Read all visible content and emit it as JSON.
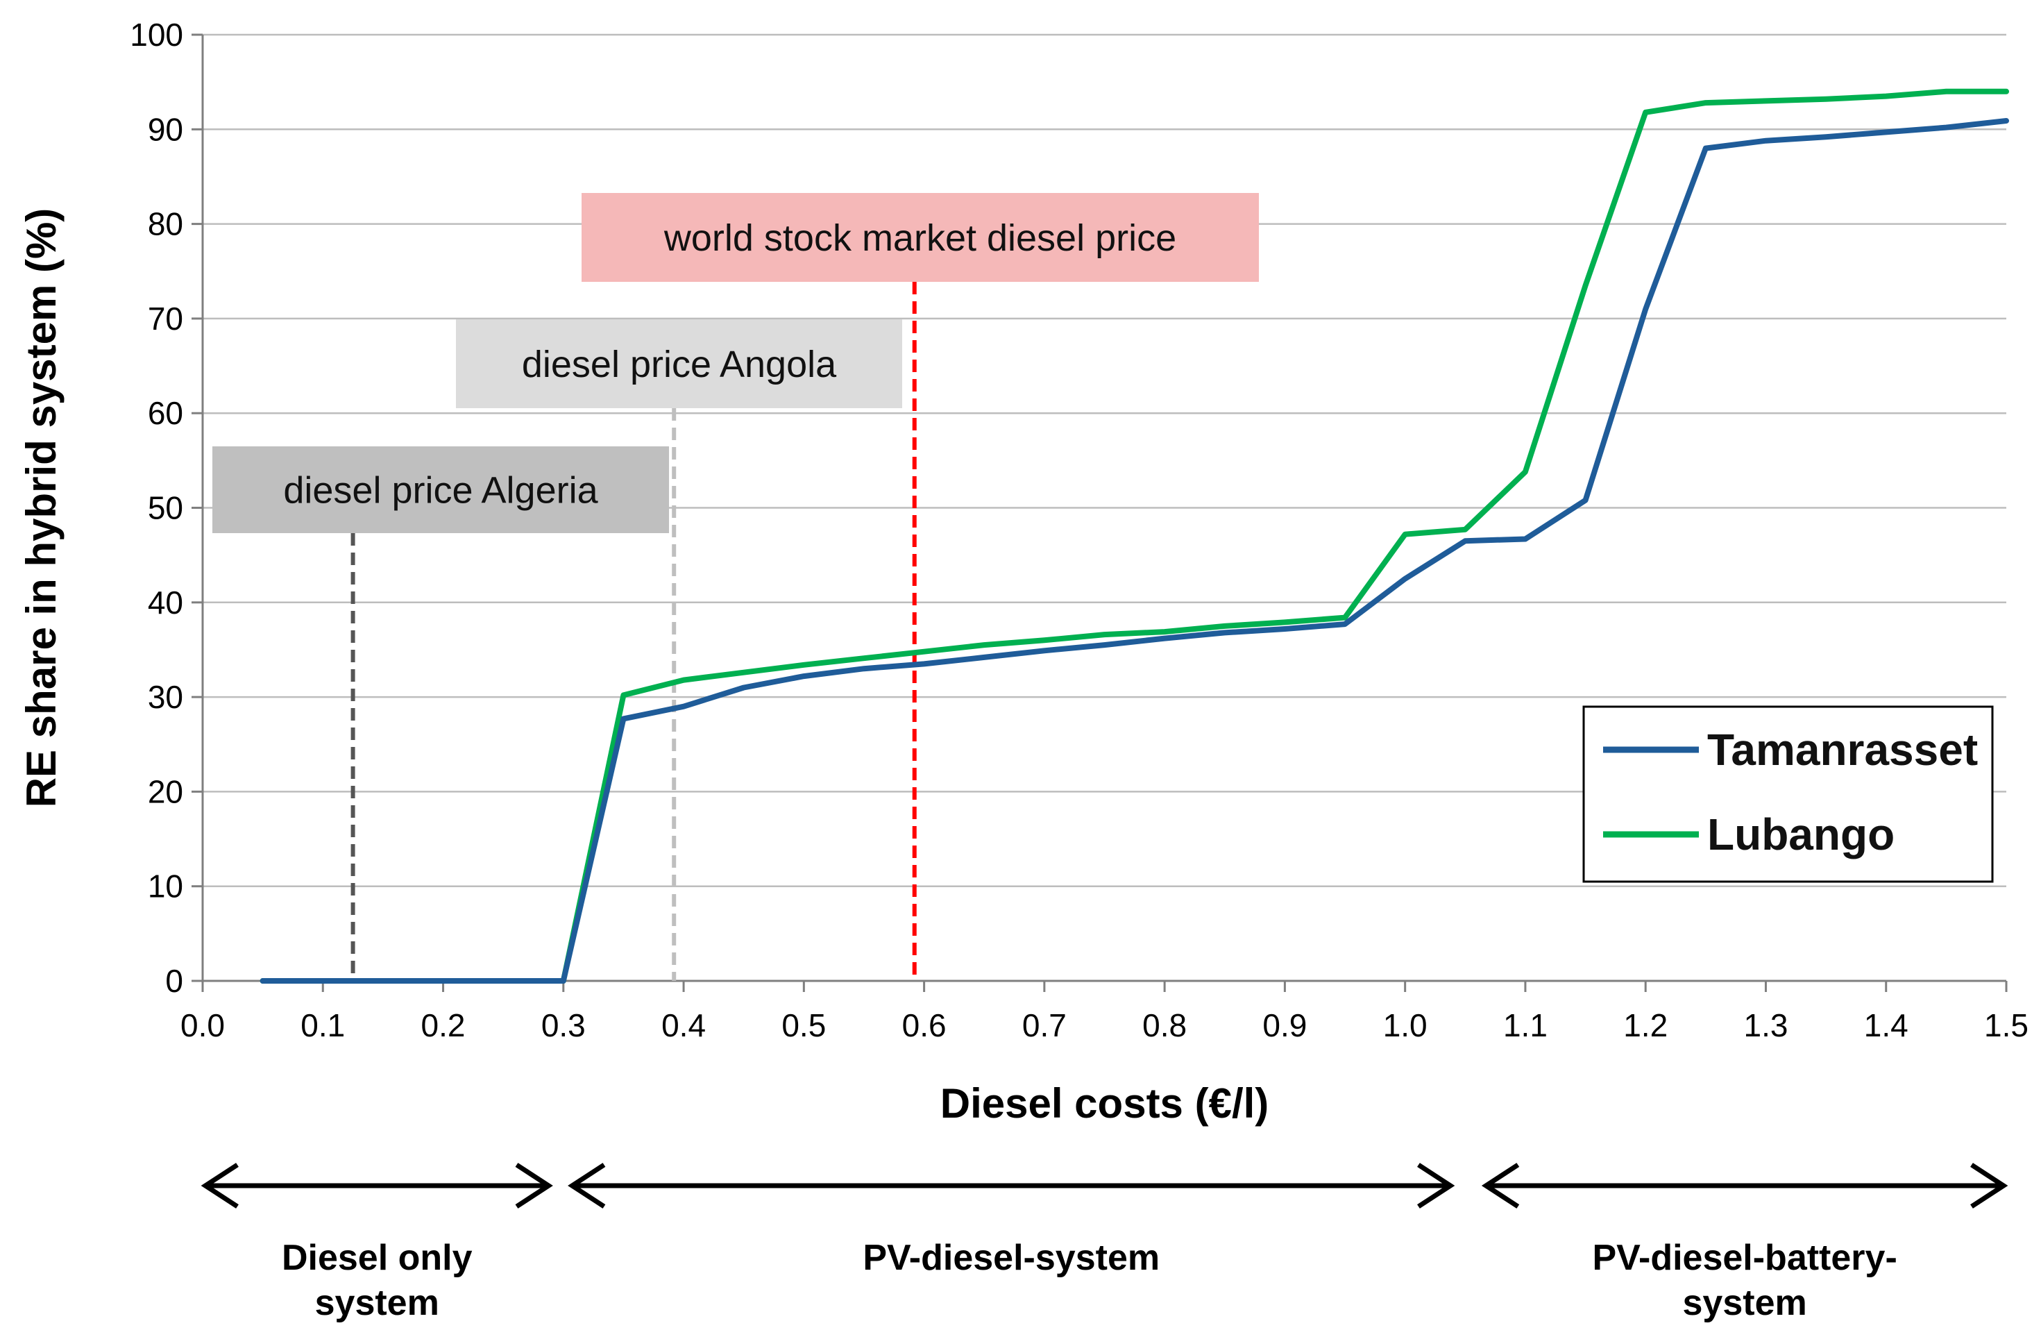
{
  "chart_data": {
    "type": "line",
    "title": "",
    "xlabel": "Diesel costs (€/l)",
    "ylabel": "RE share in hybrid system (%)",
    "xlim": [
      0.0,
      1.5
    ],
    "ylim": [
      0,
      100
    ],
    "x_ticks": [
      "0.0",
      "0.1",
      "0.2",
      "0.3",
      "0.4",
      "0.5",
      "0.6",
      "0.7",
      "0.8",
      "0.9",
      "1.0",
      "1.1",
      "1.2",
      "1.3",
      "1.4",
      "1.5"
    ],
    "y_ticks": [
      "0",
      "10",
      "20",
      "30",
      "40",
      "50",
      "60",
      "70",
      "80",
      "90",
      "100"
    ],
    "grid": "horizontal",
    "legend_position": "bottom-right",
    "series": [
      {
        "name": "Tamanrasset",
        "color": "#1F5C99",
        "x": [
          0.05,
          0.1,
          0.15,
          0.2,
          0.25,
          0.3,
          0.35,
          0.4,
          0.45,
          0.5,
          0.55,
          0.6,
          0.65,
          0.7,
          0.75,
          0.8,
          0.85,
          0.9,
          0.95,
          1.0,
          1.05,
          1.1,
          1.15,
          1.2,
          1.25,
          1.3,
          1.35,
          1.4,
          1.45,
          1.5
        ],
        "y": [
          0,
          0,
          0,
          0,
          0,
          0,
          27.7,
          29,
          31,
          32.2,
          33,
          33.5,
          34.2,
          34.9,
          35.5,
          36.2,
          36.8,
          37.2,
          37.7,
          42.5,
          46.5,
          46.7,
          50.8,
          71,
          88,
          88.8,
          89.2,
          89.7,
          90.2,
          90.9
        ]
      },
      {
        "name": "Lubango",
        "color": "#00B050",
        "x": [
          0.05,
          0.1,
          0.15,
          0.2,
          0.25,
          0.3,
          0.35,
          0.4,
          0.45,
          0.5,
          0.55,
          0.6,
          0.65,
          0.7,
          0.75,
          0.8,
          0.85,
          0.9,
          0.95,
          1.0,
          1.05,
          1.1,
          1.15,
          1.2,
          1.25,
          1.3,
          1.35,
          1.4,
          1.45,
          1.5
        ],
        "y": [
          0,
          0,
          0,
          0,
          0,
          0,
          30.2,
          31.8,
          32.6,
          33.4,
          34.1,
          34.8,
          35.5,
          36,
          36.6,
          36.9,
          37.5,
          37.9,
          38.4,
          47.2,
          47.7,
          53.8,
          73.5,
          91.8,
          92.8,
          93,
          93.2,
          93.5,
          94,
          94
        ]
      }
    ],
    "vertical_markers": [
      {
        "x": 0.125,
        "label": "diesel price Algeria",
        "line_color": "#555555",
        "box_color": "#BFBFBF"
      },
      {
        "x": 0.392,
        "label": "diesel price Angola",
        "line_color": "#BFBFBF",
        "box_color": "#DCDCDC"
      },
      {
        "x": 0.592,
        "label": "world stock market diesel price",
        "line_color": "#FF0000",
        "box_color": "#F5B8B8"
      }
    ],
    "ranges": [
      {
        "from": 0.0,
        "to": 0.29,
        "label_line1": "Diesel only",
        "label_line2": "system"
      },
      {
        "from": 0.305,
        "to": 1.04,
        "label_line1": "PV-diesel-system",
        "label_line2": ""
      },
      {
        "from": 1.065,
        "to": 1.5,
        "label_line1": "PV-diesel-battery-",
        "label_line2": "system"
      }
    ]
  }
}
